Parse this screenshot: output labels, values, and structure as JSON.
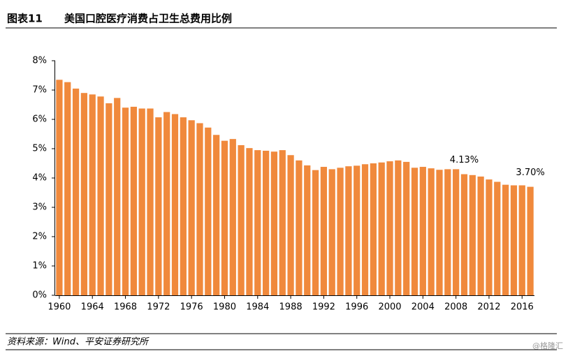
{
  "header": {
    "figure": "图表11",
    "title": "美国口腔医疗消费占卫生总费用比例"
  },
  "chart_data": {
    "type": "bar",
    "color": "#f0893c",
    "categories": [
      "1960",
      null,
      null,
      null,
      "1964",
      null,
      null,
      null,
      "1968",
      null,
      null,
      null,
      "1972",
      null,
      null,
      null,
      "1976",
      null,
      null,
      null,
      "1980",
      null,
      null,
      null,
      "1984",
      null,
      null,
      null,
      "1988",
      null,
      null,
      null,
      "1992",
      null,
      null,
      null,
      "1996",
      null,
      null,
      null,
      "2000",
      null,
      null,
      null,
      "2004",
      null,
      null,
      null,
      "2008",
      null,
      null,
      null,
      "2012",
      null,
      null,
      null,
      "2016",
      null
    ],
    "values": [
      7.35,
      7.27,
      7.05,
      6.9,
      6.85,
      6.78,
      6.55,
      6.73,
      6.4,
      6.43,
      6.37,
      6.37,
      6.07,
      6.25,
      6.18,
      6.07,
      5.97,
      5.87,
      5.72,
      5.47,
      5.27,
      5.33,
      5.12,
      5.02,
      4.95,
      4.93,
      4.9,
      4.95,
      4.78,
      4.6,
      4.43,
      4.27,
      4.38,
      4.3,
      4.35,
      4.4,
      4.42,
      4.47,
      4.5,
      4.53,
      4.57,
      4.6,
      4.55,
      4.35,
      4.38,
      4.33,
      4.28,
      4.3,
      4.3,
      4.13,
      4.1,
      4.05,
      3.95,
      3.87,
      3.77,
      3.75,
      3.75,
      3.7
    ],
    "value_labels": [
      null,
      null,
      null,
      null,
      null,
      null,
      null,
      null,
      null,
      null,
      null,
      null,
      null,
      null,
      null,
      null,
      null,
      null,
      null,
      null,
      null,
      null,
      null,
      null,
      null,
      null,
      null,
      null,
      null,
      null,
      null,
      null,
      null,
      null,
      null,
      null,
      null,
      null,
      null,
      null,
      null,
      null,
      null,
      null,
      null,
      null,
      null,
      null,
      null,
      "4.13%",
      null,
      null,
      null,
      null,
      null,
      null,
      null,
      "3.70%"
    ],
    "ylim": [
      0,
      8
    ],
    "yticks": [
      {
        "value": 0,
        "label": "0%"
      },
      {
        "value": 1,
        "label": "1%"
      },
      {
        "value": 2,
        "label": "2%"
      },
      {
        "value": 3,
        "label": "3%"
      },
      {
        "value": 4,
        "label": "4%"
      },
      {
        "value": 5,
        "label": "5%"
      },
      {
        "value": 6,
        "label": "6%"
      },
      {
        "value": 7,
        "label": "7%"
      },
      {
        "value": 8,
        "label": "8%"
      }
    ]
  },
  "footer": {
    "source": "资料来源：Wind、平安证券研究所",
    "watermark": "@格隆汇"
  }
}
